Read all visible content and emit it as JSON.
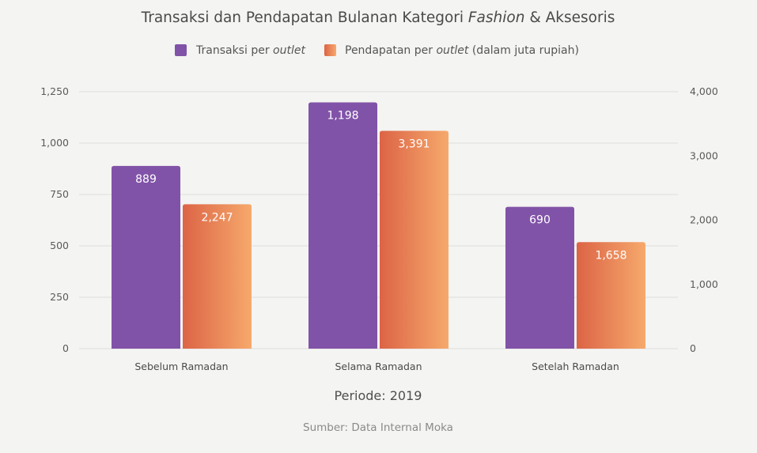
{
  "chart_data": {
    "type": "bar",
    "title_parts": [
      "Transaksi dan Pendapatan Bulanan Kategori ",
      "Fashion",
      " & Aksesoris"
    ],
    "categories": [
      "Sebelum Ramadan",
      "Selama Ramadan",
      "Setelah Ramadan"
    ],
    "series": [
      {
        "name_parts": [
          "Transaksi per ",
          "outlet",
          ""
        ],
        "axis": "left",
        "values": [
          889,
          1198,
          690
        ],
        "value_labels": [
          "889",
          "1,198",
          "690"
        ],
        "color": "#8153a8"
      },
      {
        "name_parts": [
          "Pendapatan per ",
          "outlet",
          " (dalam juta rupiah)"
        ],
        "axis": "right",
        "values": [
          2247,
          3391,
          1658
        ],
        "value_labels": [
          "2,247",
          "3,391",
          "1,658"
        ],
        "color_start": "#dc6446",
        "color_end": "#f6a96c"
      }
    ],
    "y_left": {
      "min": 0,
      "max": 1250,
      "ticks": [
        0,
        250,
        500,
        750,
        1000,
        1250
      ],
      "tick_labels": [
        "0",
        "250",
        "500",
        "750",
        "1,000",
        "1,250"
      ]
    },
    "y_right": {
      "min": 0,
      "max": 4000,
      "ticks": [
        0,
        1000,
        2000,
        3000,
        4000
      ],
      "tick_labels": [
        "0",
        "1,000",
        "2,000",
        "3,000",
        "4,000"
      ]
    },
    "xlabel": "Periode: 2019",
    "source": "Sumber: Data Internal Moka",
    "grid": true,
    "legend_position": "top-center"
  }
}
